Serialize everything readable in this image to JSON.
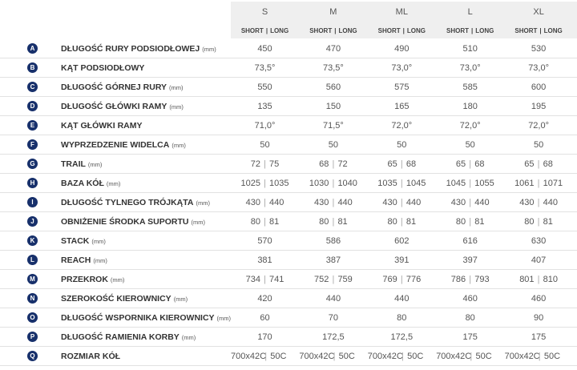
{
  "header": {
    "sizes": [
      "S",
      "M",
      "ML",
      "L",
      "XL"
    ],
    "sub": {
      "short": "SHORT",
      "long": "LONG"
    }
  },
  "rows": [
    {
      "badge": "A",
      "label": "DŁUGOŚĆ RURY PODSIODŁOWEJ",
      "unit": "(mm)",
      "values": [
        "450",
        "470",
        "490",
        "510",
        "530"
      ]
    },
    {
      "badge": "B",
      "label": "KĄT PODSIODŁOWY",
      "values": [
        "73,5°",
        "73,5°",
        "73,0°",
        "73,0°",
        "73,0°"
      ]
    },
    {
      "badge": "C",
      "label": "DŁUGOŚĆ GÓRNEJ RURY",
      "unit": "(mm)",
      "values": [
        "550",
        "560",
        "575",
        "585",
        "600"
      ]
    },
    {
      "badge": "D",
      "label": "DŁUGOŚĆ GŁÓWKI RAMY",
      "unit": "(mm)",
      "values": [
        "135",
        "150",
        "165",
        "180",
        "195"
      ]
    },
    {
      "badge": "E",
      "label": "KĄT GŁÓWKI RAMY",
      "values": [
        "71,0°",
        "71,5°",
        "72,0°",
        "72,0°",
        "72,0°"
      ]
    },
    {
      "badge": "F",
      "label": "WYPRZEDZENIE WIDELCA",
      "unit": "(mm)",
      "values": [
        "50",
        "50",
        "50",
        "50",
        "50"
      ]
    },
    {
      "badge": "G",
      "label": "TRAIL",
      "unit": "(mm)",
      "values": [
        [
          "72",
          "75"
        ],
        [
          "68",
          "72"
        ],
        [
          "65",
          "68"
        ],
        [
          "65",
          "68"
        ],
        [
          "65",
          "68"
        ]
      ]
    },
    {
      "badge": "H",
      "label": "BAZA KÓŁ",
      "unit": "(mm)",
      "values": [
        [
          "1025",
          "1035"
        ],
        [
          "1030",
          "1040"
        ],
        [
          "1035",
          "1045"
        ],
        [
          "1045",
          "1055"
        ],
        [
          "1061",
          "1071"
        ]
      ]
    },
    {
      "badge": "I",
      "label": "DŁUGOŚĆ TYLNEGO TRÓJKĄTA",
      "unit": "(mm)",
      "values": [
        [
          "430",
          "440"
        ],
        [
          "430",
          "440"
        ],
        [
          "430",
          "440"
        ],
        [
          "430",
          "440"
        ],
        [
          "430",
          "440"
        ]
      ]
    },
    {
      "badge": "J",
      "label": "OBNIŻENIE ŚRODKA SUPORTU",
      "unit": "(mm)",
      "values": [
        [
          "80",
          "81"
        ],
        [
          "80",
          "81"
        ],
        [
          "80",
          "81"
        ],
        [
          "80",
          "81"
        ],
        [
          "80",
          "81"
        ]
      ]
    },
    {
      "badge": "K",
      "label": "STACK",
      "unit": "(mm)",
      "values": [
        "570",
        "586",
        "602",
        "616",
        "630"
      ]
    },
    {
      "badge": "L",
      "label": "REACH",
      "unit": "(mm)",
      "values": [
        "381",
        "387",
        "391",
        "397",
        "407"
      ]
    },
    {
      "badge": "M",
      "label": "PRZEKROK",
      "unit": "(mm)",
      "values": [
        [
          "734",
          "741"
        ],
        [
          "752",
          "759"
        ],
        [
          "769",
          "776"
        ],
        [
          "786",
          "793"
        ],
        [
          "801",
          "810"
        ]
      ]
    },
    {
      "badge": "N",
      "label": "SZEROKOŚĆ KIEROWNICY",
      "unit": "(mm)",
      "values": [
        "420",
        "440",
        "440",
        "460",
        "460"
      ]
    },
    {
      "badge": "O",
      "label": "DŁUGOŚĆ WSPORNIKA KIEROWNICY",
      "unit": "(mm)",
      "values": [
        "60",
        "70",
        "80",
        "80",
        "90"
      ]
    },
    {
      "badge": "P",
      "label": "DŁUGOŚĆ RAMIENIA KORBY",
      "unit": "(mm)",
      "values": [
        "170",
        "172,5",
        "172,5",
        "175",
        "175"
      ]
    },
    {
      "badge": "Q",
      "label": "ROZMIAR KÓŁ",
      "values": [
        [
          "700x42C",
          "50C"
        ],
        [
          "700x42C",
          "50C"
        ],
        [
          "700x42C",
          "50C"
        ],
        [
          "700x42C",
          "50C"
        ],
        [
          "700x42C",
          "50C"
        ]
      ]
    }
  ]
}
